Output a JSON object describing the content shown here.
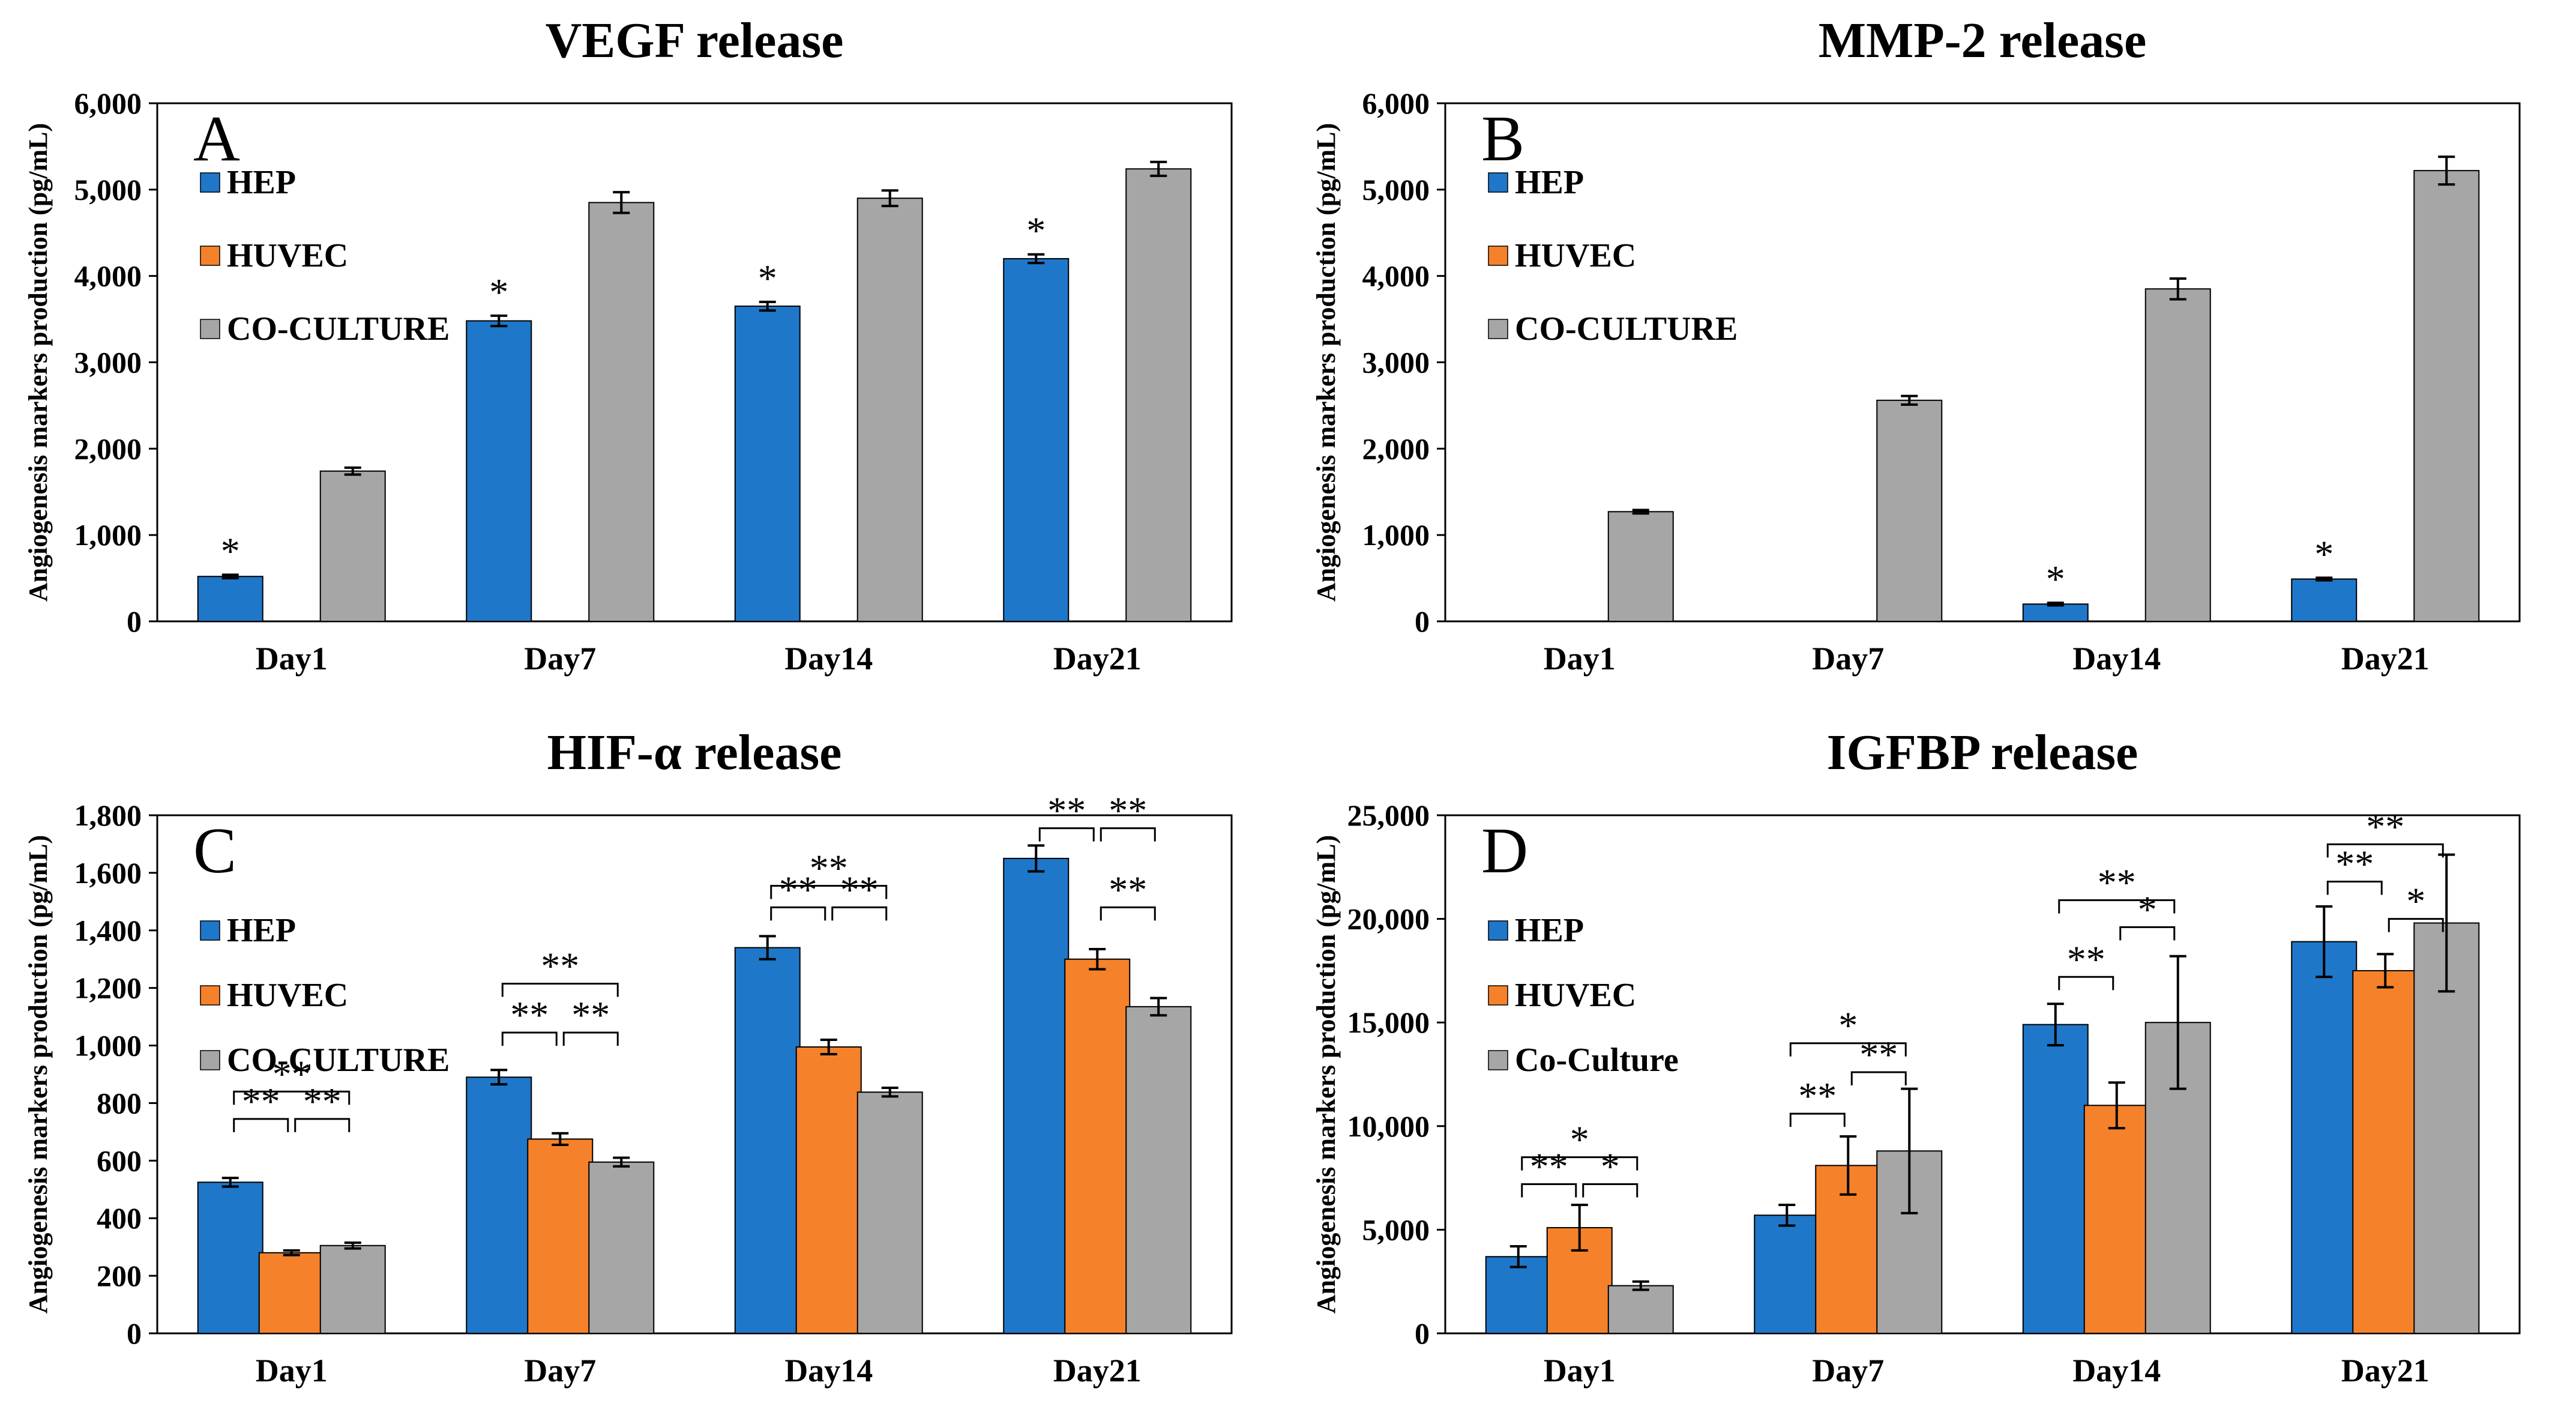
{
  "colors": {
    "HEP": "#1f77c9",
    "HUVEC": "#f5822a",
    "CO-CULTURE": "#a6a6a6"
  },
  "chart_data": [
    {
      "type": "bar",
      "panel": "A",
      "title": "VEGF release",
      "ylabel": "Angiogenesis markers production (pg/mL)",
      "xlabel": "",
      "ylim": [
        0,
        6000
      ],
      "yticks": [
        0,
        1000,
        2000,
        3000,
        4000,
        5000,
        6000
      ],
      "ytick_labels": [
        "0",
        "1,000",
        "2,000",
        "3,000",
        "4,000",
        "5,000",
        "6,000"
      ],
      "categories": [
        "Day1",
        "Day7",
        "Day14",
        "Day21"
      ],
      "legend_position": "top-left",
      "series": [
        {
          "name": "HEP",
          "values": [
            520,
            3480,
            3650,
            4200
          ],
          "errors": [
            20,
            60,
            50,
            50
          ]
        },
        {
          "name": "HUVEC",
          "values": [
            0,
            0,
            0,
            0
          ],
          "errors": [
            0,
            0,
            0,
            0
          ]
        },
        {
          "name": "CO-CULTURE",
          "values": [
            1740,
            4850,
            4900,
            5240
          ],
          "errors": [
            40,
            120,
            90,
            80
          ]
        }
      ],
      "annotations": [
        {
          "text": "*",
          "category": 0,
          "series": 0
        },
        {
          "text": "*",
          "category": 1,
          "series": 0
        },
        {
          "text": "*",
          "category": 2,
          "series": 0
        },
        {
          "text": "*",
          "category": 3,
          "series": 0
        }
      ],
      "brackets": []
    },
    {
      "type": "bar",
      "panel": "B",
      "title": "MMP-2 release",
      "ylabel": "Angiogenesis markers production (pg/mL)",
      "xlabel": "",
      "ylim": [
        0,
        6000
      ],
      "yticks": [
        0,
        1000,
        2000,
        3000,
        4000,
        5000,
        6000
      ],
      "ytick_labels": [
        "0",
        "1,000",
        "2,000",
        "3,000",
        "4,000",
        "5,000",
        "6,000"
      ],
      "categories": [
        "Day1",
        "Day7",
        "Day14",
        "Day21"
      ],
      "legend_position": "top-left",
      "series": [
        {
          "name": "HEP",
          "values": [
            0,
            0,
            200,
            490
          ],
          "errors": [
            0,
            0,
            15,
            15
          ]
        },
        {
          "name": "HUVEC",
          "values": [
            0,
            0,
            0,
            0
          ],
          "errors": [
            0,
            0,
            0,
            0
          ]
        },
        {
          "name": "CO-CULTURE",
          "values": [
            1270,
            2560,
            3850,
            5220
          ],
          "errors": [
            20,
            50,
            120,
            160
          ]
        }
      ],
      "annotations": [
        {
          "text": "*",
          "category": 2,
          "series": 0
        },
        {
          "text": "*",
          "category": 3,
          "series": 0
        }
      ],
      "brackets": []
    },
    {
      "type": "bar",
      "panel": "C",
      "title": "HIF-α release",
      "ylabel": "Angiogenesis markers production (pg/mL)",
      "xlabel": "",
      "ylim": [
        0,
        1800
      ],
      "yticks": [
        0,
        200,
        400,
        600,
        800,
        1000,
        1200,
        1400,
        1600,
        1800
      ],
      "ytick_labels": [
        "0",
        "200",
        "400",
        "600",
        "800",
        "1,000",
        "1,200",
        "1,400",
        "1,600",
        "1,800"
      ],
      "categories": [
        "Day1",
        "Day7",
        "Day14",
        "Day21"
      ],
      "legend_position": "left",
      "series": [
        {
          "name": "HEP",
          "values": [
            525,
            890,
            1340,
            1650
          ],
          "errors": [
            15,
            25,
            40,
            45
          ]
        },
        {
          "name": "HUVEC",
          "values": [
            280,
            675,
            995,
            1300
          ],
          "errors": [
            8,
            20,
            25,
            35
          ]
        },
        {
          "name": "CO-CULTURE",
          "values": [
            305,
            595,
            838,
            1135
          ],
          "errors": [
            10,
            15,
            15,
            30
          ]
        }
      ],
      "annotations": [],
      "brackets": [
        {
          "category": 0,
          "from": 0,
          "to": 1,
          "level": 745,
          "text": "**"
        },
        {
          "category": 0,
          "from": 1,
          "to": 2,
          "level": 745,
          "text": "**"
        },
        {
          "category": 0,
          "from": 0,
          "to": 2,
          "level": 840,
          "text": "**"
        },
        {
          "category": 1,
          "from": 0,
          "to": 1,
          "level": 1045,
          "text": "**"
        },
        {
          "category": 1,
          "from": 1,
          "to": 2,
          "level": 1045,
          "text": "**"
        },
        {
          "category": 1,
          "from": 0,
          "to": 2,
          "level": 1215,
          "text": "**"
        },
        {
          "category": 2,
          "from": 0,
          "to": 1,
          "level": 1480,
          "text": "**"
        },
        {
          "category": 2,
          "from": 1,
          "to": 2,
          "level": 1480,
          "text": "**"
        },
        {
          "category": 2,
          "from": 0,
          "to": 2,
          "level": 1555,
          "text": "**"
        },
        {
          "category": 3,
          "from": 0,
          "to": 1,
          "level": 1755,
          "text": "**"
        },
        {
          "category": 3,
          "from": 1,
          "to": 2,
          "level": 1755,
          "text": "**"
        },
        {
          "category": 3,
          "from": 1,
          "to": 2,
          "level": 1480,
          "text": "**"
        }
      ]
    },
    {
      "type": "bar",
      "panel": "D",
      "title": "IGFBP release",
      "ylabel": "Angiogenesis markers production (pg/mL)",
      "xlabel": "",
      "ylim": [
        0,
        25000
      ],
      "yticks": [
        0,
        5000,
        10000,
        15000,
        20000,
        25000
      ],
      "ytick_labels": [
        "0",
        "5,000",
        "10,000",
        "15,000",
        "20,000",
        "25,000"
      ],
      "categories": [
        "Day1",
        "Day7",
        "Day14",
        "Day21"
      ],
      "legend_position": "left",
      "series": [
        {
          "name": "HEP",
          "values": [
            3700,
            5700,
            14900,
            18900
          ],
          "errors": [
            500,
            500,
            1000,
            1700
          ]
        },
        {
          "name": "HUVEC",
          "values": [
            5100,
            8100,
            11000,
            17500
          ],
          "errors": [
            1100,
            1400,
            1100,
            800
          ]
        },
        {
          "name": "Co-Culture",
          "values": [
            2300,
            8800,
            15000,
            19800
          ],
          "errors": [
            200,
            3000,
            3200,
            3300
          ]
        }
      ],
      "annotations": [],
      "brackets": [
        {
          "category": 0,
          "from": 0,
          "to": 1,
          "level": 7200,
          "text": "**"
        },
        {
          "category": 0,
          "from": 1,
          "to": 2,
          "level": 7200,
          "text": "*"
        },
        {
          "category": 0,
          "from": 0,
          "to": 2,
          "level": 8500,
          "text": "*"
        },
        {
          "category": 1,
          "from": 0,
          "to": 1,
          "level": 10600,
          "text": "**"
        },
        {
          "category": 1,
          "from": 1,
          "to": 2,
          "level": 12600,
          "text": "**"
        },
        {
          "category": 1,
          "from": 0,
          "to": 2,
          "level": 14000,
          "text": "*"
        },
        {
          "category": 2,
          "from": 0,
          "to": 1,
          "level": 17200,
          "text": "**"
        },
        {
          "category": 2,
          "from": 1,
          "to": 2,
          "level": 19600,
          "text": "*"
        },
        {
          "category": 2,
          "from": 0,
          "to": 2,
          "level": 20900,
          "text": "**"
        },
        {
          "category": 3,
          "from": 0,
          "to": 1,
          "level": 21800,
          "text": "**"
        },
        {
          "category": 3,
          "from": 1,
          "to": 2,
          "level": 20000,
          "text": "*"
        },
        {
          "category": 3,
          "from": 0,
          "to": 2,
          "level": 23600,
          "text": "**"
        }
      ]
    }
  ]
}
